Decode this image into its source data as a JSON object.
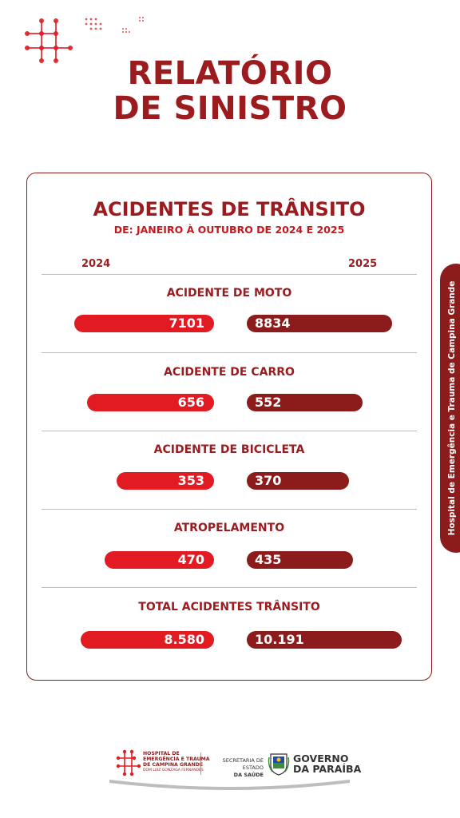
{
  "header": {
    "title_line1": "RELATÓRIO",
    "title_line2": "DE SINISTRO"
  },
  "card": {
    "title": "ACIDENTES DE TRÂNSITO",
    "subtitle": "DE: JANEIRO À OUTUBRO DE 2024 E 2025",
    "year_left": "2024",
    "year_right": "2025",
    "categories": [
      {
        "label": "ACIDENTE DE MOTO",
        "v2024": "7101",
        "v2025": "8834"
      },
      {
        "label": "ACIDENTE DE CARRO",
        "v2024": "656",
        "v2025": "552"
      },
      {
        "label": "ACIDENTE DE BICICLETA",
        "v2024": "353",
        "v2025": "370"
      },
      {
        "label": "ATROPELAMENTO",
        "v2024": "470",
        "v2025": "435"
      },
      {
        "label": "TOTAL ACIDENTES TRÂNSITO",
        "v2024": "8.580",
        "v2025": "10.191"
      }
    ]
  },
  "side_tab": {
    "text": "Hospital de Emergência e Trauma de Campina Grande"
  },
  "footer": {
    "hospital_line1": "HOSPITAL DE",
    "hospital_line2": "EMERGÊNCIA E TRAUMA",
    "hospital_line3": "DE CAMPINA GRANDE",
    "hospital_line4": "DOM LUIZ GONZAGA FERNANDES",
    "secretaria_line1": "SECRETARIA DE ESTADO",
    "secretaria_line2": "DA SAÚDE",
    "gov_line1": "GOVERNO",
    "gov_line2": "DA PARAÍBA"
  },
  "colors": {
    "primary_red": "#e21a22",
    "dark_red": "#8c1c1c",
    "title_red": "#9b1b1e"
  }
}
